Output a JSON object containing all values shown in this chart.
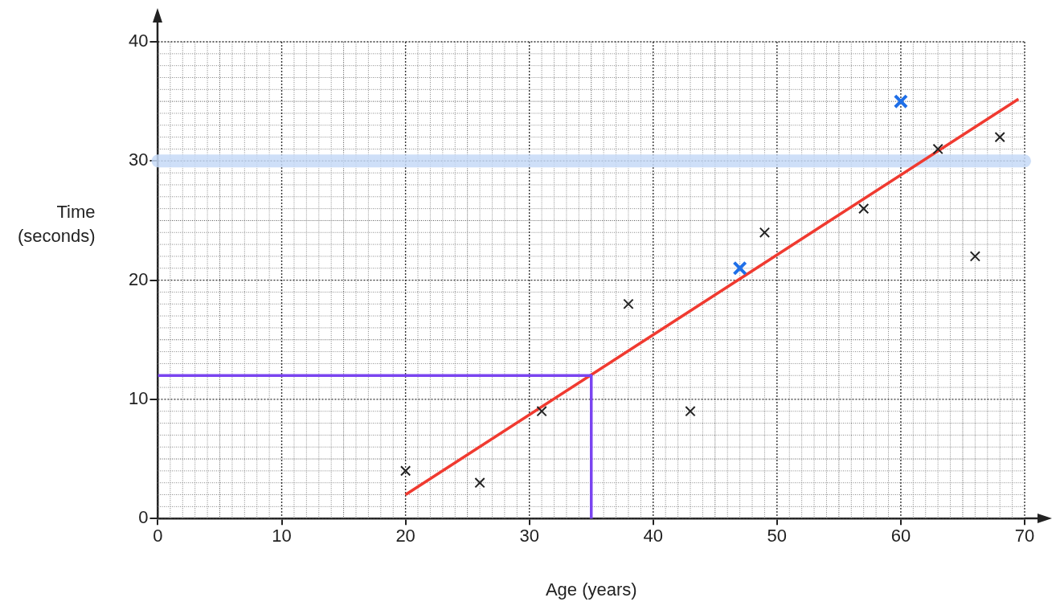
{
  "chart_data": {
    "type": "scatter",
    "xlabel": "Age (years)",
    "ylabel": "Time (seconds)",
    "xlim": [
      0,
      70
    ],
    "ylim": [
      0,
      40
    ],
    "xticks": [
      0,
      10,
      20,
      30,
      40,
      50,
      60,
      70
    ],
    "yticks": [
      0,
      10,
      20,
      30,
      40
    ],
    "grid": true,
    "legend": false,
    "marker": "cross",
    "series": [
      {
        "type": "scatter",
        "color": "#222222",
        "x": [
          20,
          26,
          31,
          38,
          43,
          49,
          57,
          63,
          66,
          68
        ],
        "values": [
          4,
          3,
          9,
          18,
          9,
          24,
          26,
          31,
          22,
          32
        ]
      },
      {
        "type": "scatter",
        "color": "#1f6fe8",
        "x": [
          47,
          60
        ],
        "values": [
          21,
          35
        ]
      },
      {
        "type": "line",
        "color": "#7a44f0",
        "marker": "none",
        "x": [
          0,
          35,
          35
        ],
        "values": [
          12,
          12,
          0
        ]
      },
      {
        "type": "line",
        "color": "#f03a30",
        "marker": "none",
        "x": [
          20,
          69.5
        ],
        "values": [
          2,
          35.2
        ]
      }
    ],
    "ref_lines": [
      {
        "axis": "y",
        "value": 30,
        "color": "#c5d9f7"
      }
    ]
  }
}
